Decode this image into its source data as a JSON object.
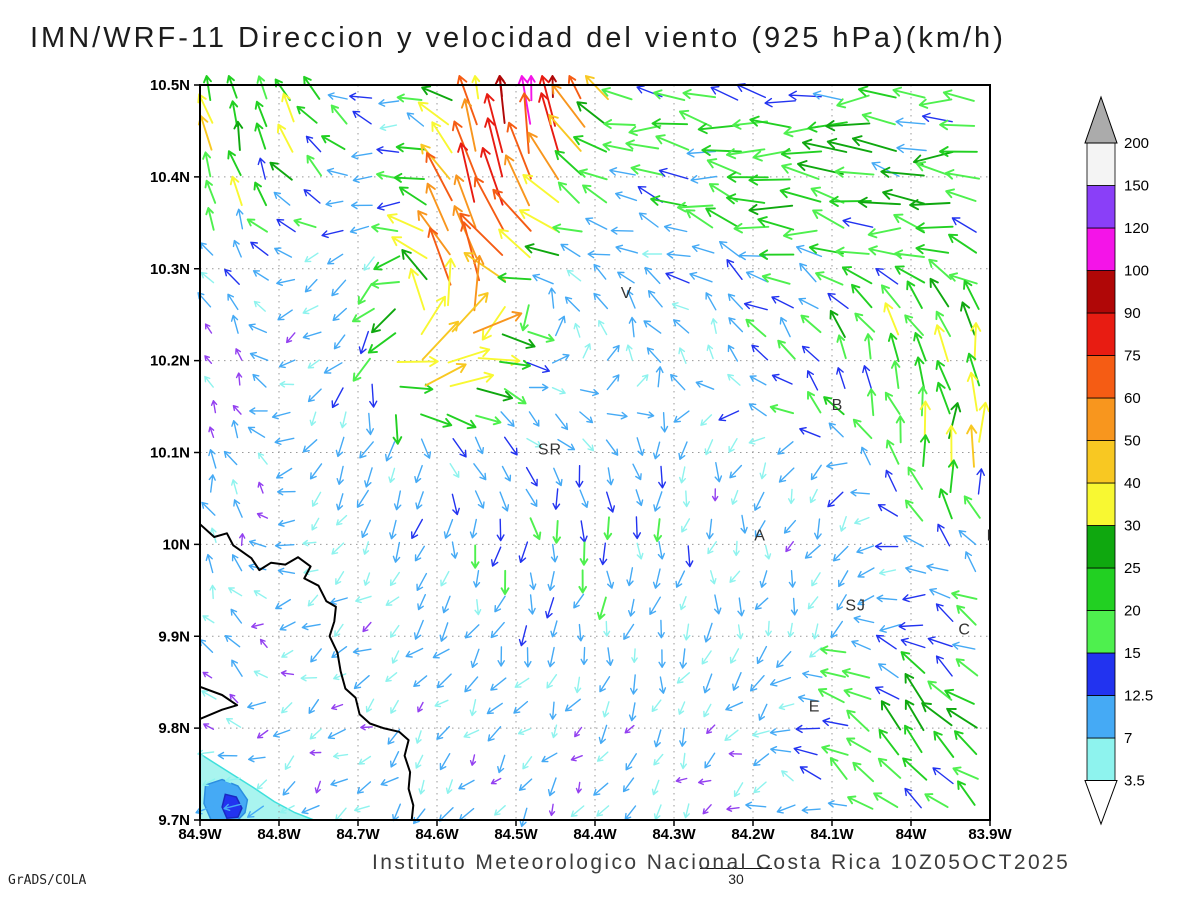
{
  "chart_data": {
    "type": "vector_field",
    "title": "IMN/WRF-11 Direccion y velocidad del viento (925 hPa)(km/h)",
    "caption": "Instituto Meteorologico Nacional Costa Rica  10Z05OCT2025",
    "credit": "GrADS/COLA",
    "stray_contour_label": "30",
    "level": "925 hPa",
    "units": "km/h",
    "grid": "dotted",
    "x_axis": {
      "range_w": [
        84.9,
        83.9
      ],
      "tick_lons": [
        84.9,
        84.8,
        84.7,
        84.6,
        84.5,
        84.4,
        84.3,
        84.2,
        84.1,
        84.0,
        83.9
      ],
      "tick_labels": [
        "84.9W",
        "84.8W",
        "84.7W",
        "84.6W",
        "84.5W",
        "84.4W",
        "84.3W",
        "84.2W",
        "84.1W",
        "84W",
        "83.9W"
      ]
    },
    "y_axis": {
      "range_n": [
        9.7,
        10.5
      ],
      "tick_lats": [
        10.5,
        10.4,
        10.3,
        10.2,
        10.1,
        10.0,
        9.9,
        9.8,
        9.7
      ],
      "tick_labels": [
        "10.5N",
        "10.4N",
        "10.3N",
        "10.2N",
        "10.1N",
        "10N",
        "9.9N",
        "9.8N",
        "9.7N"
      ]
    },
    "colorbar": {
      "legend_position": "right",
      "levels": [
        3.5,
        7,
        12.5,
        15,
        20,
        25,
        30,
        40,
        50,
        60,
        75,
        90,
        100,
        120,
        150,
        200
      ],
      "segment_colors": [
        "#8ef3ee",
        "#45aaf5",
        "#2233f0",
        "#4ef04e",
        "#22d022",
        "#0fa80f",
        "#f8f832",
        "#f8c822",
        "#f8961e",
        "#f55c14",
        "#e81c12",
        "#b00707",
        "#f414e8",
        "#8a3ff8",
        "#f4f4f4"
      ],
      "under_color": "#ffffff",
      "over_color": "#ababab"
    },
    "stations": [
      {
        "label": "V",
        "lon": 84.36,
        "lat": 10.268
      },
      {
        "label": "B",
        "lon": 84.093,
        "lat": 10.146
      },
      {
        "label": "SR",
        "lon": 84.457,
        "lat": 10.098
      },
      {
        "label": "A",
        "lon": 84.191,
        "lat": 10.004
      },
      {
        "label": "SJ",
        "lon": 84.07,
        "lat": 9.928
      },
      {
        "label": "C",
        "lon": 83.932,
        "lat": 9.902
      },
      {
        "label": "E",
        "lon": 84.122,
        "lat": 9.818
      },
      {
        "label": "L",
        "lon": 83.898,
        "lat": 10.004
      }
    ],
    "coastline": [
      [
        [
          84.9,
          10.022
        ],
        [
          84.882,
          10.008
        ],
        [
          84.866,
          10.012
        ],
        [
          84.858,
          9.999
        ],
        [
          84.835,
          9.985
        ],
        [
          84.825,
          9.972
        ],
        [
          84.81,
          9.98
        ],
        [
          84.792,
          9.978
        ],
        [
          84.776,
          9.986
        ],
        [
          84.76,
          9.976
        ],
        [
          84.768,
          9.963
        ],
        [
          84.75,
          9.955
        ],
        [
          84.74,
          9.938
        ],
        [
          84.728,
          9.932
        ],
        [
          84.73,
          9.916
        ],
        [
          84.736,
          9.9
        ],
        [
          84.726,
          9.882
        ],
        [
          84.722,
          9.862
        ],
        [
          84.716,
          9.843
        ],
        [
          84.703,
          9.833
        ],
        [
          84.698,
          9.815
        ],
        [
          84.685,
          9.805
        ],
        [
          84.668,
          9.8
        ],
        [
          84.648,
          9.796
        ],
        [
          84.636,
          9.787
        ],
        [
          84.641,
          9.77
        ],
        [
          84.634,
          9.752
        ],
        [
          84.636,
          9.734
        ],
        [
          84.63,
          9.716
        ],
        [
          84.632,
          9.7
        ]
      ],
      [
        [
          84.9,
          9.845
        ],
        [
          84.872,
          9.836
        ],
        [
          84.853,
          9.825
        ],
        [
          84.872,
          9.82
        ],
        [
          84.9,
          9.81
        ]
      ]
    ],
    "shaded_areas": [
      {
        "level": "3.5",
        "color": "#a9f4ef",
        "outline": "#3fe0dc",
        "points": [
          [
            84.9,
            9.772
          ],
          [
            84.878,
            9.76
          ],
          [
            84.856,
            9.748
          ],
          [
            84.832,
            9.735
          ],
          [
            84.806,
            9.72
          ],
          [
            84.78,
            9.708
          ],
          [
            84.756,
            9.7
          ],
          [
            84.9,
            9.7
          ]
        ]
      },
      {
        "level": "7",
        "color": "#45aaf5",
        "outline": "#2b8fe0",
        "points": [
          [
            84.893,
            9.738
          ],
          [
            84.872,
            9.744
          ],
          [
            84.852,
            9.737
          ],
          [
            84.84,
            9.722
          ],
          [
            84.843,
            9.708
          ],
          [
            84.852,
            9.7
          ],
          [
            84.886,
            9.7
          ],
          [
            84.895,
            9.718
          ]
        ]
      },
      {
        "level": "12.5",
        "color": "#2233f0",
        "outline": "#1a28c0",
        "points": [
          [
            84.868,
            9.728
          ],
          [
            84.854,
            9.725
          ],
          [
            84.847,
            9.713
          ],
          [
            84.852,
            9.703
          ],
          [
            84.866,
            9.702
          ],
          [
            84.872,
            9.714
          ]
        ]
      }
    ],
    "wind_field": {
      "nx": 30,
      "ny": 28,
      "seed_jitter": 6,
      "slow_arrow_color": "#9340f0",
      "base_speed": [
        1.5,
        11.0
      ],
      "vortex": {
        "x": 0.43,
        "y": 0.3,
        "sigma": 0.19,
        "k": 1.0
      },
      "jet": {
        "x1": 0.3,
        "y1": 0.38,
        "x2": 0.425,
        "y2": 0.01,
        "sigma": 0.055,
        "amp_lo": 35,
        "amp_hi": 95,
        "push": 3.2,
        "stretch": 0.45
      },
      "hotspots": [
        {
          "x": 0.8,
          "y": 0.1,
          "sx": 0.2,
          "sy": 0.11,
          "amp": 16
        },
        {
          "x": 0.05,
          "y": 0.06,
          "sx": 0.1,
          "sy": 0.09,
          "amp": 28
        },
        {
          "x": 0.97,
          "y": 0.47,
          "sx": 0.06,
          "sy": 0.1,
          "amp": 22
        },
        {
          "x": 0.93,
          "y": 0.88,
          "sx": 0.1,
          "sy": 0.1,
          "amp": 18
        },
        {
          "x": 0.45,
          "y": 0.62,
          "sx": 0.12,
          "sy": 0.1,
          "amp": 8
        },
        {
          "x": 0.85,
          "y": 0.35,
          "sx": 0.12,
          "sy": 0.12,
          "amp": 10
        }
      ],
      "flows": [
        {
          "x": 0.6,
          "y": 0.62,
          "sx": 0.17,
          "sy": 0.15,
          "dx": 0.0,
          "dy": 1.0,
          "k": 0.9,
          "stretch": 0
        },
        {
          "x": 0.93,
          "y": 0.88,
          "sx": 0.12,
          "sy": 0.1,
          "dx": -0.55,
          "dy": -0.85,
          "k": 0.9,
          "stretch": 0.3
        },
        {
          "x": 0.97,
          "y": 0.47,
          "sx": 0.07,
          "sy": 0.12,
          "dx": 0.3,
          "dy": -0.95,
          "k": 0.9,
          "stretch": 0.3
        },
        {
          "x": 0.05,
          "y": 0.06,
          "sx": 0.11,
          "sy": 0.1,
          "dx": 0.15,
          "dy": -1.0,
          "k": 1.0,
          "stretch": 0
        },
        {
          "x": 0.8,
          "y": 0.1,
          "sx": 0.22,
          "sy": 0.12,
          "dx": -1.0,
          "dy": 0.05,
          "k": 1.1,
          "stretch": 0.55
        },
        {
          "x": 0.0,
          "y": 0.45,
          "sx": 0.06,
          "sy": 0.25,
          "dx": 0.1,
          "dy": -1.0,
          "k": 0.8,
          "stretch": 0
        },
        {
          "x": 0.85,
          "y": 0.38,
          "sx": 0.12,
          "sy": 0.12,
          "dx": 0.2,
          "dy": -1.0,
          "k": 0.5,
          "stretch": 0
        }
      ],
      "ambient": {
        "north_dx": -0.55,
        "south_dx": -0.1,
        "south_dy": 0.15,
        "noise": 1.5
      }
    }
  }
}
